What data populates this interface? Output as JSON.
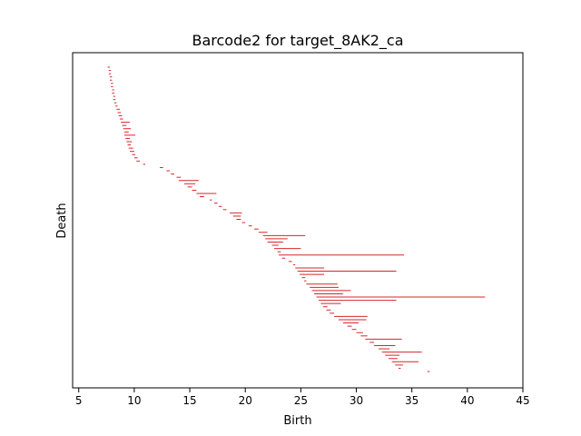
{
  "chart_data": {
    "type": "barcode",
    "title": "Barcode2 for target_8AK2_ca",
    "xlabel": "Birth",
    "ylabel": "Death",
    "xlim": [
      4.45,
      45.0
    ],
    "xticks": [
      5,
      10,
      15,
      20,
      25,
      30,
      35,
      40,
      45
    ],
    "y_ticks_shown": false,
    "bar_color": "#d62728",
    "bars": [
      [
        7.6,
        7.8
      ],
      [
        7.7,
        7.9
      ],
      [
        7.7,
        7.9
      ],
      [
        7.8,
        8.0
      ],
      [
        7.8,
        8.0
      ],
      [
        7.9,
        8.1
      ],
      [
        7.9,
        8.1
      ],
      [
        8.0,
        8.2
      ],
      [
        8.0,
        8.2
      ],
      [
        8.1,
        8.3
      ],
      [
        8.1,
        8.3
      ],
      [
        8.2,
        8.4
      ],
      [
        8.3,
        8.5
      ],
      [
        8.4,
        8.7
      ],
      [
        8.5,
        8.8
      ],
      [
        8.6,
        8.9
      ],
      [
        8.7,
        9.0
      ],
      [
        8.8,
        9.6
      ],
      [
        8.9,
        9.3
      ],
      [
        9.0,
        9.7
      ],
      [
        9.1,
        9.5
      ],
      [
        9.1,
        10.1
      ],
      [
        9.2,
        9.6
      ],
      [
        9.3,
        9.8
      ],
      [
        9.4,
        9.7
      ],
      [
        9.5,
        9.9
      ],
      [
        9.6,
        10.0
      ],
      [
        9.8,
        10.1
      ],
      [
        10.0,
        10.3
      ],
      [
        10.2,
        10.5
      ],
      [
        10.8,
        11.0
      ],
      [
        12.3,
        12.6
      ],
      [
        12.9,
        13.2
      ],
      [
        13.3,
        13.6
      ],
      [
        13.8,
        14.2
      ],
      [
        14.0,
        15.8
      ],
      [
        14.5,
        15.5
      ],
      [
        14.8,
        15.2
      ],
      [
        15.2,
        15.6
      ],
      [
        15.6,
        17.4
      ],
      [
        15.9,
        16.3
      ],
      [
        16.8,
        17.0
      ],
      [
        17.2,
        17.5
      ],
      [
        17.6,
        17.9
      ],
      [
        18.0,
        18.3
      ],
      [
        18.6,
        19.7
      ],
      [
        18.9,
        19.6
      ],
      [
        19.2,
        19.6
      ],
      [
        19.7,
        20.0
      ],
      [
        20.3,
        20.6
      ],
      [
        20.8,
        21.2
      ],
      [
        21.2,
        22.0
      ],
      [
        21.6,
        25.4
      ],
      [
        21.8,
        23.8
      ],
      [
        22.0,
        23.4
      ],
      [
        22.4,
        23.0
      ],
      [
        22.6,
        25.0
      ],
      [
        22.9,
        23.2
      ],
      [
        23.0,
        34.3
      ],
      [
        23.3,
        23.6
      ],
      [
        23.9,
        24.2
      ],
      [
        24.3,
        24.5
      ],
      [
        24.5,
        27.1
      ],
      [
        24.7,
        33.6
      ],
      [
        24.9,
        27.1
      ],
      [
        25.1,
        25.4
      ],
      [
        25.3,
        25.5
      ],
      [
        25.5,
        28.3
      ],
      [
        25.8,
        28.4
      ],
      [
        26.0,
        29.5
      ],
      [
        26.2,
        28.8
      ],
      [
        26.4,
        41.6
      ],
      [
        26.6,
        33.6
      ],
      [
        26.8,
        28.6
      ],
      [
        27.0,
        27.4
      ],
      [
        27.3,
        27.7
      ],
      [
        27.6,
        28.0
      ],
      [
        28.0,
        31.0
      ],
      [
        28.4,
        30.9
      ],
      [
        28.8,
        30.2
      ],
      [
        29.2,
        29.6
      ],
      [
        29.6,
        30.0
      ],
      [
        30.0,
        30.6
      ],
      [
        30.4,
        31.0
      ],
      [
        30.8,
        34.1
      ],
      [
        31.2,
        31.6
      ],
      [
        31.6,
        33.5
      ],
      [
        32.0,
        33.0
      ],
      [
        32.3,
        35.9
      ],
      [
        32.6,
        33.9
      ],
      [
        32.9,
        33.7
      ],
      [
        33.2,
        35.6
      ],
      [
        33.5,
        34.2
      ],
      [
        33.8,
        34.0
      ],
      [
        36.4,
        36.6
      ]
    ]
  }
}
